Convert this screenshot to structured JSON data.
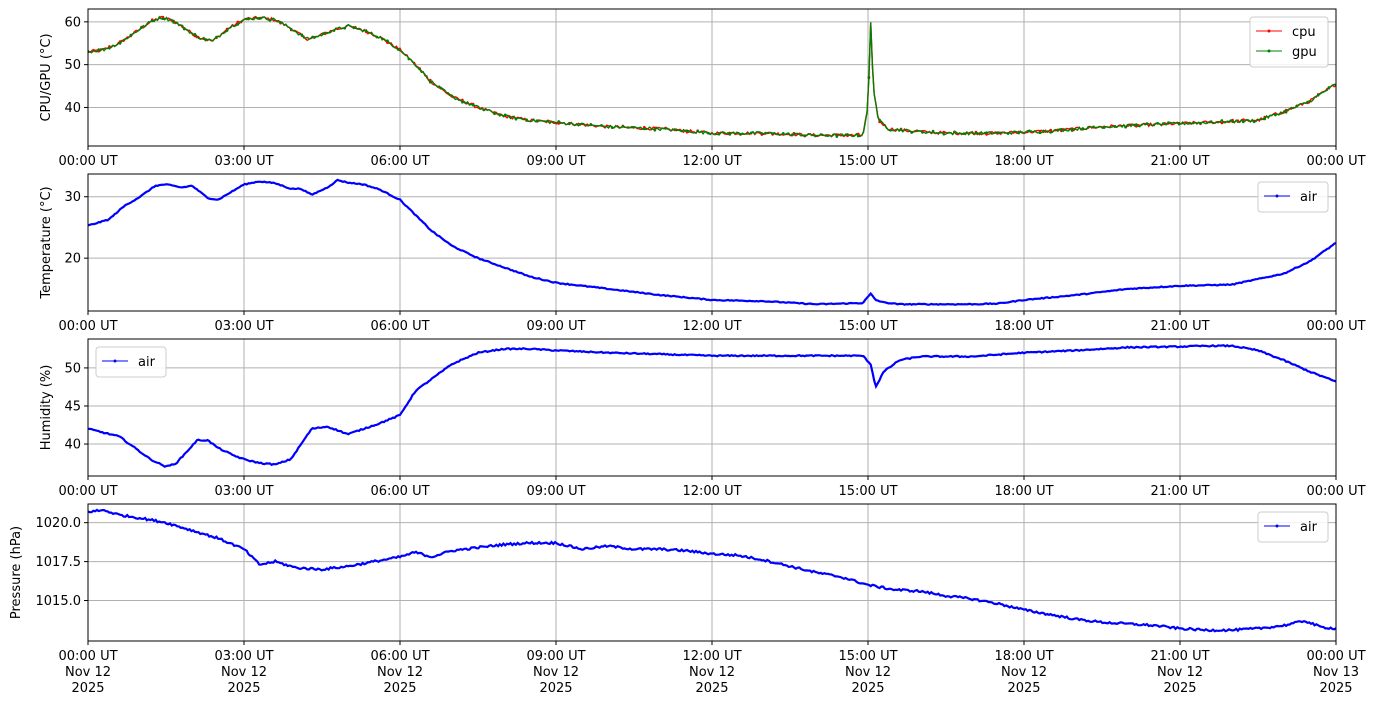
{
  "chart_data": [
    {
      "type": "line",
      "ylabel": "CPU/GPU (°C)",
      "ylim": [
        31,
        63
      ],
      "yticks": [
        40,
        50,
        60
      ],
      "ytick_labels": [
        "40",
        "50",
        "60"
      ],
      "x_range_hours": [
        0,
        24
      ],
      "xtick_labels": [
        "00:00 UT",
        "03:00 UT",
        "06:00 UT",
        "09:00 UT",
        "12:00 UT",
        "15:00 UT",
        "18:00 UT",
        "21:00 UT",
        "00:00 UT"
      ],
      "grid": true,
      "legend_placement": "upper right",
      "series": [
        {
          "name": "cpu",
          "color": "#ff0000",
          "x": [
            0,
            0.3,
            0.6,
            0.9,
            1.2,
            1.4,
            1.6,
            1.8,
            2.1,
            2.4,
            2.7,
            3.0,
            3.3,
            3.6,
            3.9,
            4.2,
            4.4,
            4.7,
            5.0,
            5.3,
            5.6,
            6.0,
            6.3,
            6.6,
            7.0,
            7.5,
            8.0,
            8.5,
            9.0,
            10.0,
            11.0,
            12.0,
            13.0,
            14.0,
            14.9,
            15.0,
            15.05,
            15.1,
            15.2,
            15.4,
            15.8,
            16.5,
            17.5,
            18.5,
            19.5,
            20.5,
            21.5,
            22.5,
            23.0,
            23.5,
            24.0
          ],
          "values": [
            53,
            53.5,
            55,
            57.5,
            60,
            61,
            60.5,
            59,
            56.5,
            55.5,
            58.5,
            60.5,
            61,
            60.5,
            58.5,
            56,
            56.5,
            58,
            59,
            58,
            56.5,
            53.5,
            50,
            46,
            42.5,
            40,
            38,
            37,
            36.5,
            35.5,
            35,
            34,
            34,
            33.5,
            33.5,
            40,
            60,
            45,
            37,
            35,
            34.5,
            34,
            34,
            34.5,
            35.5,
            36,
            36.5,
            37,
            39,
            41.5,
            45.5
          ]
        },
        {
          "name": "gpu",
          "color": "#008000",
          "x": [
            0,
            0.3,
            0.6,
            0.9,
            1.2,
            1.4,
            1.6,
            1.8,
            2.1,
            2.4,
            2.7,
            3.0,
            3.3,
            3.6,
            3.9,
            4.2,
            4.4,
            4.7,
            5.0,
            5.3,
            5.6,
            6.0,
            6.3,
            6.6,
            7.0,
            7.5,
            8.0,
            8.5,
            9.0,
            10.0,
            11.0,
            12.0,
            13.0,
            14.0,
            14.9,
            15.0,
            15.05,
            15.1,
            15.2,
            15.4,
            15.8,
            16.5,
            17.5,
            18.5,
            19.5,
            20.5,
            21.5,
            22.5,
            23.0,
            23.5,
            24.0
          ],
          "values": [
            53,
            53.5,
            55,
            57.5,
            60,
            61,
            60.5,
            59,
            56.5,
            55.5,
            58.5,
            60.5,
            61,
            60.5,
            58.5,
            56,
            56.5,
            58,
            59,
            58,
            56.5,
            53.5,
            50,
            46,
            42.5,
            40,
            38,
            37,
            36.5,
            35.5,
            35,
            34,
            34,
            33.5,
            33.5,
            40,
            60,
            45,
            37,
            35,
            34.5,
            34,
            34,
            34.5,
            35.5,
            36,
            36.5,
            37,
            39,
            41.5,
            45.5
          ]
        }
      ]
    },
    {
      "type": "line",
      "ylabel": "Temperature (°C)",
      "ylim": [
        11.4,
        33.7
      ],
      "yticks": [
        20,
        30
      ],
      "ytick_labels": [
        "20",
        "30"
      ],
      "x_range_hours": [
        0,
        24
      ],
      "xtick_labels": [
        "00:00 UT",
        "03:00 UT",
        "06:00 UT",
        "09:00 UT",
        "12:00 UT",
        "15:00 UT",
        "18:00 UT",
        "21:00 UT",
        "00:00 UT"
      ],
      "grid": true,
      "legend_placement": "upper right",
      "series": [
        {
          "name": "air",
          "color": "#0000ff",
          "x": [
            0,
            0.4,
            0.7,
            1.0,
            1.3,
            1.5,
            1.8,
            2.0,
            2.3,
            2.5,
            2.8,
            3.0,
            3.3,
            3.6,
            3.9,
            4.1,
            4.3,
            4.6,
            4.8,
            5.0,
            5.3,
            5.6,
            6.0,
            6.3,
            6.6,
            7.0,
            7.5,
            8.0,
            8.5,
            9.0,
            10.0,
            11.0,
            12.0,
            13.0,
            14.0,
            14.9,
            15.05,
            15.15,
            15.3,
            15.6,
            16.0,
            17.0,
            17.5,
            18.0,
            19.0,
            20.0,
            21.0,
            22.0,
            23.0,
            23.5,
            24.0
          ],
          "values": [
            25.3,
            26.3,
            28.5,
            30,
            31.8,
            32,
            31.5,
            31.8,
            29.8,
            29.5,
            31,
            32,
            32.5,
            32.2,
            31.3,
            31.3,
            30.3,
            31.5,
            32.7,
            32.3,
            32,
            31.2,
            29.5,
            27,
            24.5,
            22,
            20,
            18.5,
            17,
            16,
            15,
            14,
            13.2,
            13,
            12.5,
            12.7,
            14.2,
            13.2,
            12.8,
            12.5,
            12.5,
            12.5,
            12.6,
            13.2,
            14,
            15,
            15.5,
            15.7,
            17.5,
            19.5,
            22.5
          ]
        }
      ]
    },
    {
      "type": "line",
      "ylabel": "Humidity (%)",
      "ylim": [
        35.8,
        53.8
      ],
      "yticks": [
        40,
        45,
        50
      ],
      "ytick_labels": [
        "40",
        "45",
        "50"
      ],
      "x_range_hours": [
        0,
        24
      ],
      "xtick_labels": [
        "00:00 UT",
        "03:00 UT",
        "06:00 UT",
        "09:00 UT",
        "12:00 UT",
        "15:00 UT",
        "18:00 UT",
        "21:00 UT",
        "00:00 UT"
      ],
      "grid": true,
      "legend_placement": "upper left",
      "series": [
        {
          "name": "air",
          "color": "#0000ff",
          "x": [
            0,
            0.3,
            0.6,
            0.9,
            1.2,
            1.5,
            1.7,
            1.9,
            2.1,
            2.3,
            2.5,
            2.8,
            3.0,
            3.3,
            3.6,
            3.9,
            4.1,
            4.3,
            4.6,
            4.8,
            5.0,
            5.3,
            5.6,
            6.0,
            6.3,
            6.6,
            7.0,
            7.5,
            8.0,
            8.5,
            9.0,
            10.0,
            11.0,
            12.0,
            13.0,
            14.0,
            14.9,
            15.05,
            15.15,
            15.3,
            15.6,
            16.0,
            17.0,
            18.0,
            19.0,
            20.0,
            21.0,
            21.5,
            22.0,
            22.5,
            23.0,
            23.5,
            24.0
          ],
          "values": [
            42,
            41.5,
            41,
            39.5,
            38,
            37,
            37.5,
            39,
            40.5,
            40.5,
            39.5,
            38.5,
            38,
            37.5,
            37.3,
            38,
            40,
            42,
            42.3,
            41.8,
            41.3,
            42,
            42.7,
            43.8,
            47,
            48.5,
            50.5,
            52,
            52.5,
            52.5,
            52.3,
            52,
            51.8,
            51.6,
            51.6,
            51.6,
            51.6,
            50.5,
            47.5,
            49.5,
            51,
            51.5,
            51.5,
            52,
            52.3,
            52.7,
            52.8,
            52.9,
            52.9,
            52.3,
            51,
            49.5,
            48.2
          ]
        }
      ]
    },
    {
      "type": "line",
      "ylabel": "Pressure (hPa)",
      "ylim": [
        1012.4,
        1021.2
      ],
      "yticks": [
        1015.0,
        1017.5,
        1020.0
      ],
      "ytick_labels": [
        "1015.0",
        "1017.5",
        "1020.0"
      ],
      "x_range_hours": [
        0,
        24
      ],
      "xtick_labels": [
        "00:00 UT\nNov 12\n2025",
        "03:00 UT\nNov 12\n2025",
        "06:00 UT\nNov 12\n2025",
        "09:00 UT\nNov 12\n2025",
        "12:00 UT\nNov 12\n2025",
        "15:00 UT\nNov 12\n2025",
        "18:00 UT\nNov 12\n2025",
        "21:00 UT\nNov 12\n2025",
        "00:00 UT\nNov 13\n2025"
      ],
      "grid": true,
      "legend_placement": "upper right",
      "series": [
        {
          "name": "air",
          "color": "#0000ff",
          "x": [
            0,
            0.3,
            0.6,
            1.0,
            1.5,
            2.0,
            2.5,
            3.0,
            3.3,
            3.6,
            4.0,
            4.5,
            5.0,
            5.5,
            6.0,
            6.3,
            6.6,
            7.0,
            7.5,
            8.0,
            8.5,
            9.0,
            9.5,
            10.0,
            10.5,
            11.0,
            11.5,
            12.0,
            12.5,
            13.0,
            13.5,
            14.0,
            14.5,
            15.0,
            15.5,
            16.0,
            16.5,
            17.0,
            17.5,
            18.0,
            18.5,
            19.0,
            19.5,
            20.0,
            20.5,
            21.0,
            21.5,
            22.0,
            22.5,
            23.0,
            23.4,
            23.7,
            24.0
          ],
          "values": [
            1020.7,
            1020.8,
            1020.5,
            1020.3,
            1020.0,
            1019.5,
            1019.0,
            1018.3,
            1017.3,
            1017.5,
            1017.1,
            1017.0,
            1017.2,
            1017.5,
            1017.8,
            1018.1,
            1017.8,
            1018.2,
            1018.4,
            1018.6,
            1018.7,
            1018.7,
            1018.3,
            1018.5,
            1018.3,
            1018.3,
            1018.2,
            1018.0,
            1017.9,
            1017.6,
            1017.2,
            1016.8,
            1016.5,
            1016.0,
            1015.7,
            1015.6,
            1015.3,
            1015.1,
            1014.8,
            1014.4,
            1014.1,
            1013.8,
            1013.6,
            1013.5,
            1013.4,
            1013.2,
            1013.1,
            1013.1,
            1013.2,
            1013.4,
            1013.7,
            1013.3,
            1013.2
          ]
        }
      ]
    }
  ]
}
